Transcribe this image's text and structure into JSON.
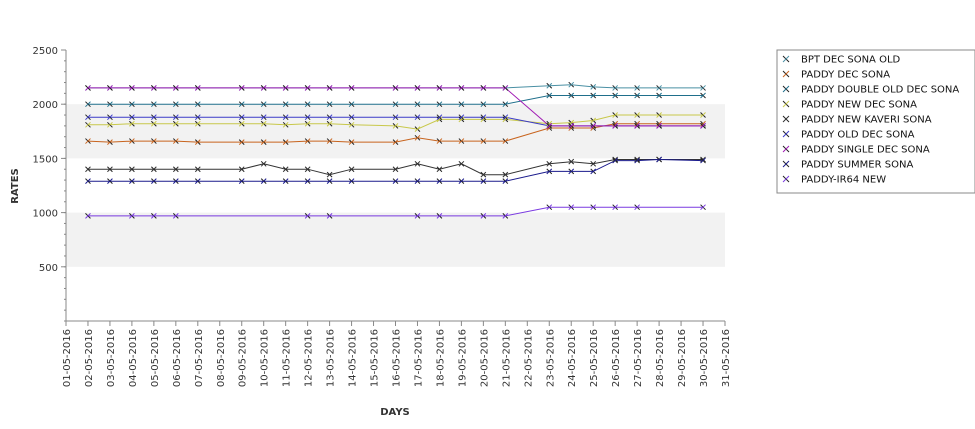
{
  "chart_data": {
    "type": "line",
    "xlabel": "DAYS",
    "ylabel": "RATES",
    "ylim": [
      0,
      2500
    ],
    "yticks": [
      500,
      1000,
      1500,
      2000,
      2500
    ],
    "grid": false,
    "background_bands": "alternating grey/white 500-unit bands",
    "legend_position": "right",
    "x": [
      "01-05-2016",
      "02-05-2016",
      "03-05-2016",
      "04-05-2016",
      "05-05-2016",
      "06-05-2016",
      "07-05-2016",
      "08-05-2016",
      "09-05-2016",
      "10-05-2016",
      "11-05-2016",
      "12-05-2016",
      "13-05-2016",
      "14-05-2016",
      "15-05-2016",
      "16-05-2016",
      "17-05-2016",
      "18-05-2016",
      "19-05-2016",
      "20-05-2016",
      "21-05-2016",
      "22-05-2016",
      "23-05-2016",
      "24-05-2016",
      "25-05-2016",
      "26-05-2016",
      "27-05-2016",
      "28-05-2016",
      "29-05-2016",
      "30-05-2016",
      "31-05-2016"
    ],
    "series": [
      {
        "name": "BPT DEC SONA OLD",
        "color": "#4a90a4",
        "values": [
          null,
          2150,
          2150,
          2150,
          2150,
          2150,
          2150,
          null,
          2150,
          2150,
          2150,
          2150,
          2150,
          2150,
          null,
          2150,
          2150,
          2150,
          2150,
          2150,
          2150,
          null,
          2170,
          2180,
          2160,
          2150,
          2150,
          2150,
          null,
          2150,
          null
        ]
      },
      {
        "name": "PADDY DEC SONA",
        "color": "#c8641e",
        "values": [
          null,
          1660,
          1650,
          1660,
          1660,
          1660,
          1650,
          null,
          1650,
          1650,
          1650,
          1660,
          1660,
          1650,
          null,
          1650,
          1690,
          1660,
          1660,
          1660,
          1660,
          null,
          1780,
          1780,
          1780,
          1820,
          1820,
          1820,
          null,
          1820,
          null
        ]
      },
      {
        "name": "PADDY DOUBLE OLD DEC SONA",
        "color": "#1f6f8b",
        "values": [
          null,
          2000,
          2000,
          2000,
          2000,
          2000,
          2000,
          null,
          2000,
          2000,
          2000,
          2000,
          2000,
          2000,
          null,
          2000,
          2000,
          2000,
          2000,
          2000,
          2000,
          null,
          2080,
          2080,
          2080,
          2080,
          2080,
          2080,
          null,
          2080,
          null
        ]
      },
      {
        "name": "PADDY NEW DEC SONA",
        "color": "#c8c84a",
        "values": [
          null,
          1810,
          1810,
          1820,
          1820,
          1820,
          1820,
          null,
          1820,
          1820,
          1810,
          1820,
          1820,
          1810,
          null,
          1800,
          1770,
          1860,
          1860,
          1860,
          1860,
          null,
          1820,
          1830,
          1850,
          1900,
          1900,
          1900,
          null,
          1900,
          null
        ]
      },
      {
        "name": "PADDY NEW KAVERI SONA",
        "color": "#333333",
        "values": [
          null,
          1400,
          1400,
          1400,
          1400,
          1400,
          1400,
          null,
          1400,
          1450,
          1400,
          1400,
          1350,
          1400,
          null,
          1400,
          1450,
          1400,
          1450,
          1350,
          1350,
          null,
          1450,
          1470,
          1450,
          1490,
          1490,
          1490,
          null,
          1490,
          null
        ]
      },
      {
        "name": "PADDY OLD DEC SONA",
        "color": "#3a3ac8",
        "values": [
          null,
          1880,
          1880,
          1880,
          1880,
          1880,
          1880,
          null,
          1880,
          1880,
          1880,
          1880,
          1880,
          1880,
          null,
          1880,
          1880,
          1880,
          1880,
          1880,
          1880,
          null,
          1800,
          1800,
          1800,
          1800,
          1800,
          1800,
          null,
          1800,
          null
        ]
      },
      {
        "name": "PADDY SINGLE DEC SONA",
        "color": "#a01ab4",
        "values": [
          null,
          2150,
          2150,
          2150,
          2150,
          2150,
          2150,
          null,
          2150,
          2150,
          2150,
          2150,
          2150,
          2150,
          null,
          2150,
          2150,
          2150,
          2150,
          2150,
          2150,
          null,
          1800,
          1800,
          1800,
          1800,
          1800,
          1800,
          null,
          1800,
          null
        ]
      },
      {
        "name": "PADDY SUMMER SONA",
        "color": "#1a1a8c",
        "values": [
          null,
          1290,
          1290,
          1290,
          1290,
          1290,
          1290,
          null,
          1290,
          1290,
          1290,
          1290,
          1290,
          1290,
          null,
          1290,
          1290,
          1290,
          1290,
          1290,
          1290,
          null,
          1380,
          1380,
          1380,
          1480,
          1480,
          1490,
          null,
          1480,
          null
        ]
      },
      {
        "name": "PADDY-IR64 NEW",
        "color": "#7a3ae0",
        "values": [
          null,
          970,
          null,
          970,
          970,
          970,
          null,
          null,
          null,
          null,
          null,
          970,
          970,
          null,
          null,
          null,
          970,
          970,
          null,
          970,
          970,
          null,
          1050,
          1050,
          1050,
          1050,
          1050,
          null,
          null,
          1050,
          null
        ]
      }
    ]
  }
}
